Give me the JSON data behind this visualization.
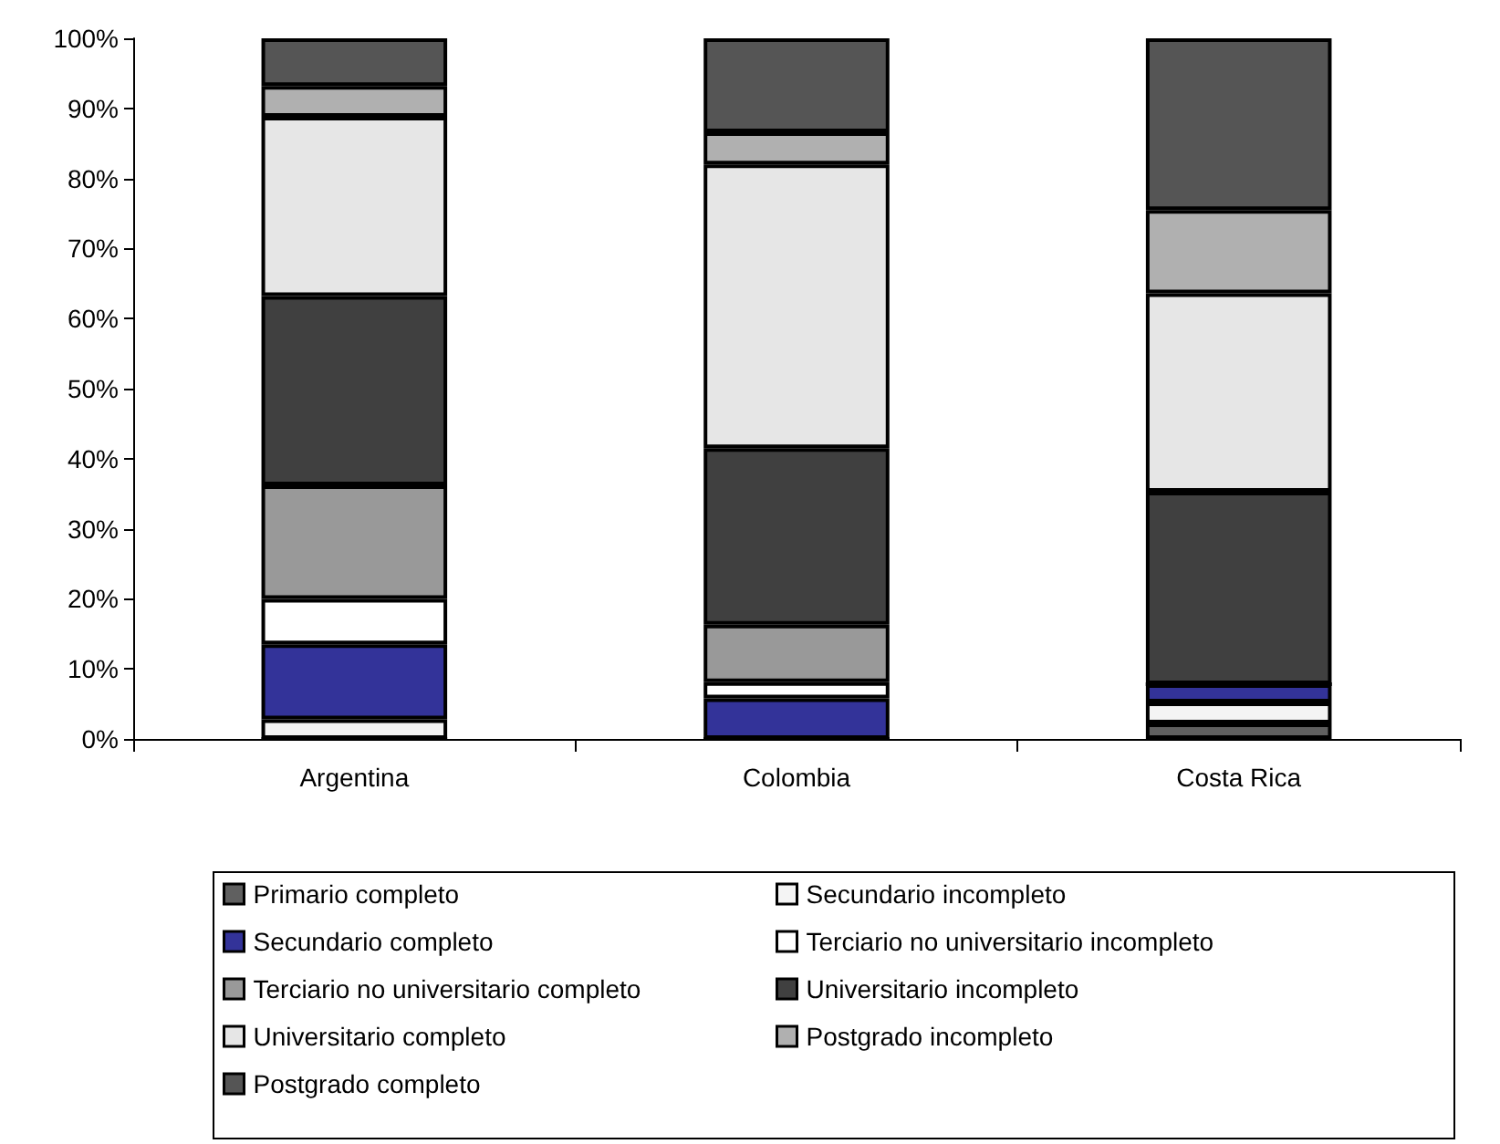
{
  "chart_data": {
    "type": "bar",
    "stacked": true,
    "categories": [
      "Argentina",
      "Colombia",
      "Costa Rica"
    ],
    "ylim": [
      0,
      100
    ],
    "yticks": [
      {
        "value": 0,
        "label": "0%"
      },
      {
        "value": 10,
        "label": "10%"
      },
      {
        "value": 20,
        "label": "20%"
      },
      {
        "value": 30,
        "label": "30%"
      },
      {
        "value": 40,
        "label": "40%"
      },
      {
        "value": 50,
        "label": "50%"
      },
      {
        "value": 60,
        "label": "60%"
      },
      {
        "value": 70,
        "label": "70%"
      },
      {
        "value": 80,
        "label": "80%"
      },
      {
        "value": 90,
        "label": "90%"
      },
      {
        "value": 100,
        "label": "100%"
      }
    ],
    "grid": false,
    "legend": "bottom",
    "series": [
      {
        "name": "Primario completo",
        "color": "#606060",
        "values": [
          0,
          0,
          2.2
        ]
      },
      {
        "name": "Secundario incompleto",
        "color": "#f4f4f4",
        "values": [
          2.8,
          0,
          3.0
        ]
      },
      {
        "name": "Secundario completo",
        "color": "#333399",
        "values": [
          10.7,
          5.8,
          2.6
        ]
      },
      {
        "name": "Terciario no universitario incompleto",
        "color": "#ffffff",
        "values": [
          6.5,
          2.3,
          0
        ]
      },
      {
        "name": "Terciario no universitario completo",
        "color": "#999999",
        "values": [
          16.2,
          8.2,
          0
        ]
      },
      {
        "name": "Universitario incompleto",
        "color": "#404040",
        "values": [
          27.0,
          25.2,
          27.5
        ]
      },
      {
        "name": "Universitario completo",
        "color": "#e6e6e6",
        "values": [
          25.6,
          40.5,
          28.3
        ]
      },
      {
        "name": "Postgrado incompleto",
        "color": "#b0b0b0",
        "values": [
          4.4,
          4.6,
          11.9
        ]
      },
      {
        "name": "Postgrado completo",
        "color": "#555555",
        "values": [
          6.8,
          13.4,
          24.5
        ]
      }
    ]
  }
}
